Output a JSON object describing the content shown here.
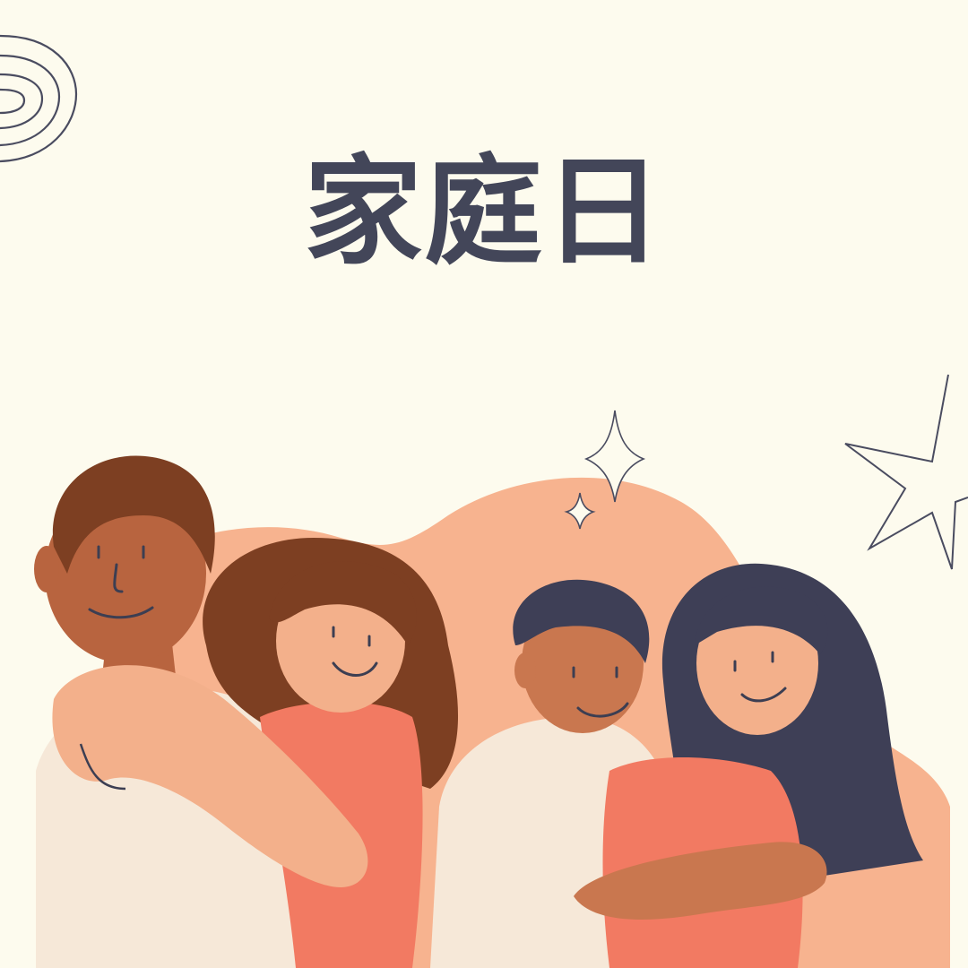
{
  "poster": {
    "title": "家庭日"
  },
  "colors": {
    "background": "#fdfbee",
    "title": "#434659",
    "hill": "#f7b38f",
    "skin_dark": "#b8643f",
    "skin_medium": "#c9774f",
    "skin_light": "#f3b08b",
    "hair_brown": "#7d3f22",
    "hair_navy": "#3e3f56",
    "shirt_white": "#f6e8d8",
    "shirt_coral": "#f27a62",
    "line": "#3c3e52"
  },
  "icons": [
    "concentric-arcs-icon",
    "sparkle-icon",
    "star-outline-icon"
  ]
}
